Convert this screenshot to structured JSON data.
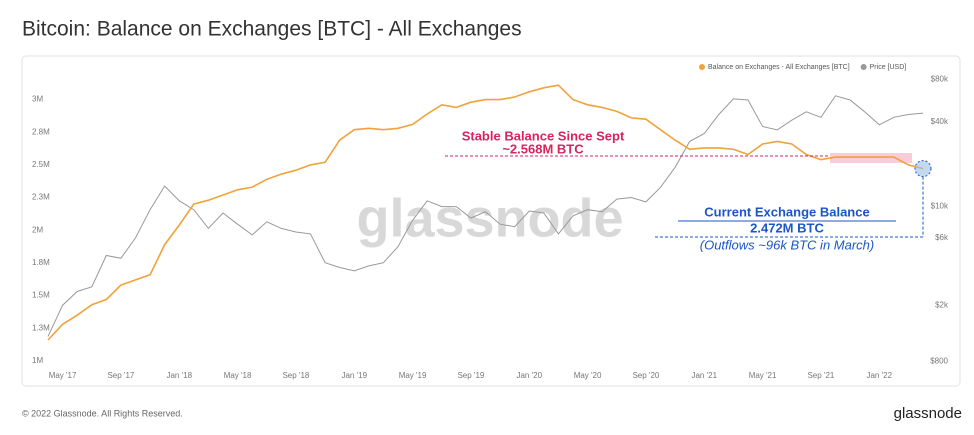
{
  "chart_data": {
    "type": "line",
    "title": "Bitcoin: Balance on Exchanges [BTC] - All Exchanges",
    "x": [
      "2017-04",
      "2017-05",
      "2017-06",
      "2017-07",
      "2017-08",
      "2017-09",
      "2017-10",
      "2017-11",
      "2017-12",
      "2018-01",
      "2018-02",
      "2018-03",
      "2018-04",
      "2018-05",
      "2018-06",
      "2018-07",
      "2018-08",
      "2018-09",
      "2018-10",
      "2018-11",
      "2018-12",
      "2019-01",
      "2019-02",
      "2019-03",
      "2019-04",
      "2019-05",
      "2019-06",
      "2019-07",
      "2019-08",
      "2019-09",
      "2019-10",
      "2019-11",
      "2019-12",
      "2020-01",
      "2020-02",
      "2020-03",
      "2020-04",
      "2020-05",
      "2020-06",
      "2020-07",
      "2020-08",
      "2020-09",
      "2020-10",
      "2020-11",
      "2020-12",
      "2021-01",
      "2021-02",
      "2021-03",
      "2021-04",
      "2021-05",
      "2021-06",
      "2021-07",
      "2021-08",
      "2021-09",
      "2021-10",
      "2021-11",
      "2021-12",
      "2022-01",
      "2022-02",
      "2022-03",
      "2022-04"
    ],
    "series": [
      {
        "name": "Balance on Exchanges - All Exchanges [BTC]",
        "color": "#f0a23b",
        "axis": "y",
        "values": [
          1160000,
          1280000,
          1350000,
          1430000,
          1470000,
          1580000,
          1620000,
          1660000,
          1890000,
          2040000,
          2200000,
          2230000,
          2270000,
          2310000,
          2330000,
          2390000,
          2430000,
          2460000,
          2500000,
          2520000,
          2690000,
          2770000,
          2780000,
          2770000,
          2780000,
          2810000,
          2890000,
          2960000,
          2940000,
          2980000,
          3000000,
          3000000,
          3020000,
          3060000,
          3090000,
          3110000,
          3000000,
          2960000,
          2940000,
          2910000,
          2860000,
          2850000,
          2770000,
          2690000,
          2620000,
          2630000,
          2630000,
          2620000,
          2580000,
          2660000,
          2680000,
          2660000,
          2580000,
          2540000,
          2560000,
          2560000,
          2560000,
          2560000,
          2560000,
          2500000,
          2472000
        ]
      },
      {
        "name": "Price [USD]",
        "color": "#999999",
        "axis": "y2",
        "values": [
          1200,
          2000,
          2500,
          2700,
          4500,
          4300,
          6000,
          9500,
          14000,
          11000,
          9500,
          7000,
          9000,
          7500,
          6300,
          7800,
          7000,
          6600,
          6400,
          4000,
          3700,
          3500,
          3800,
          4000,
          5200,
          8000,
          11000,
          10000,
          10000,
          8300,
          9200,
          7500,
          7200,
          9300,
          9000,
          6400,
          8600,
          9500,
          9200,
          11300,
          11600,
          10800,
          13700,
          19000,
          29000,
          33000,
          45000,
          58000,
          57000,
          37000,
          35000,
          41000,
          47000,
          43000,
          61000,
          57000,
          47000,
          38000,
          43000,
          45000,
          46000
        ]
      }
    ],
    "xlim": [
      "2017-04",
      "2022-04"
    ],
    "xticks": [
      {
        "value": "2017-05",
        "label": "May '17"
      },
      {
        "value": "2017-09",
        "label": "Sep '17"
      },
      {
        "value": "2018-01",
        "label": "Jan '18"
      },
      {
        "value": "2018-05",
        "label": "May '18"
      },
      {
        "value": "2018-09",
        "label": "Sep '18"
      },
      {
        "value": "2019-01",
        "label": "Jan '19"
      },
      {
        "value": "2019-05",
        "label": "May '19"
      },
      {
        "value": "2019-09",
        "label": "Sep '19"
      },
      {
        "value": "2020-01",
        "label": "Jan '20"
      },
      {
        "value": "2020-05",
        "label": "May '20"
      },
      {
        "value": "2020-09",
        "label": "Sep '20"
      },
      {
        "value": "2021-01",
        "label": "Jan '21"
      },
      {
        "value": "2021-05",
        "label": "May '21"
      },
      {
        "value": "2021-09",
        "label": "Sep '21"
      },
      {
        "value": "2022-01",
        "label": "Jan '22"
      }
    ],
    "ylim": [
      900000,
      3150000
    ],
    "yticks": [
      {
        "value": 1000000,
        "label": "1M"
      },
      {
        "value": 1250000,
        "label": "1.3M"
      },
      {
        "value": 1500000,
        "label": "1.5M"
      },
      {
        "value": 1750000,
        "label": "1.8M"
      },
      {
        "value": 2000000,
        "label": "2M"
      },
      {
        "value": 2250000,
        "label": "2.3M"
      },
      {
        "value": 2500000,
        "label": "2.5M"
      },
      {
        "value": 2750000,
        "label": "2.8M"
      },
      {
        "value": 3000000,
        "label": "3M"
      }
    ],
    "y2lim": [
      650,
      79000
    ],
    "y2_log": true,
    "y2ticks": [
      {
        "value": 800,
        "label": "$800"
      },
      {
        "value": 2000,
        "label": "$2k"
      },
      {
        "value": 6000,
        "label": "$6k"
      },
      {
        "value": 10000,
        "label": "$10k"
      },
      {
        "value": 40000,
        "label": "$40k"
      },
      {
        "value": 80000,
        "label": "$80k"
      }
    ],
    "grid": false,
    "legend": "top-right",
    "watermark": "glassnode",
    "annotations": [
      {
        "lines": [
          "Stable Balance Since Sept",
          "~2.568M BTC"
        ],
        "value": 2568000,
        "color": "#d6245e"
      },
      {
        "lines": [
          "Current Exchange Balance",
          "2.472M BTC",
          "(Outflows ~96k BTC in March)"
        ],
        "value": 2472000,
        "color": "#1a56c8"
      }
    ]
  },
  "footer": {
    "copyright": "© 2022 Glassnode. All Rights Reserved.",
    "brand": "glassnode"
  }
}
